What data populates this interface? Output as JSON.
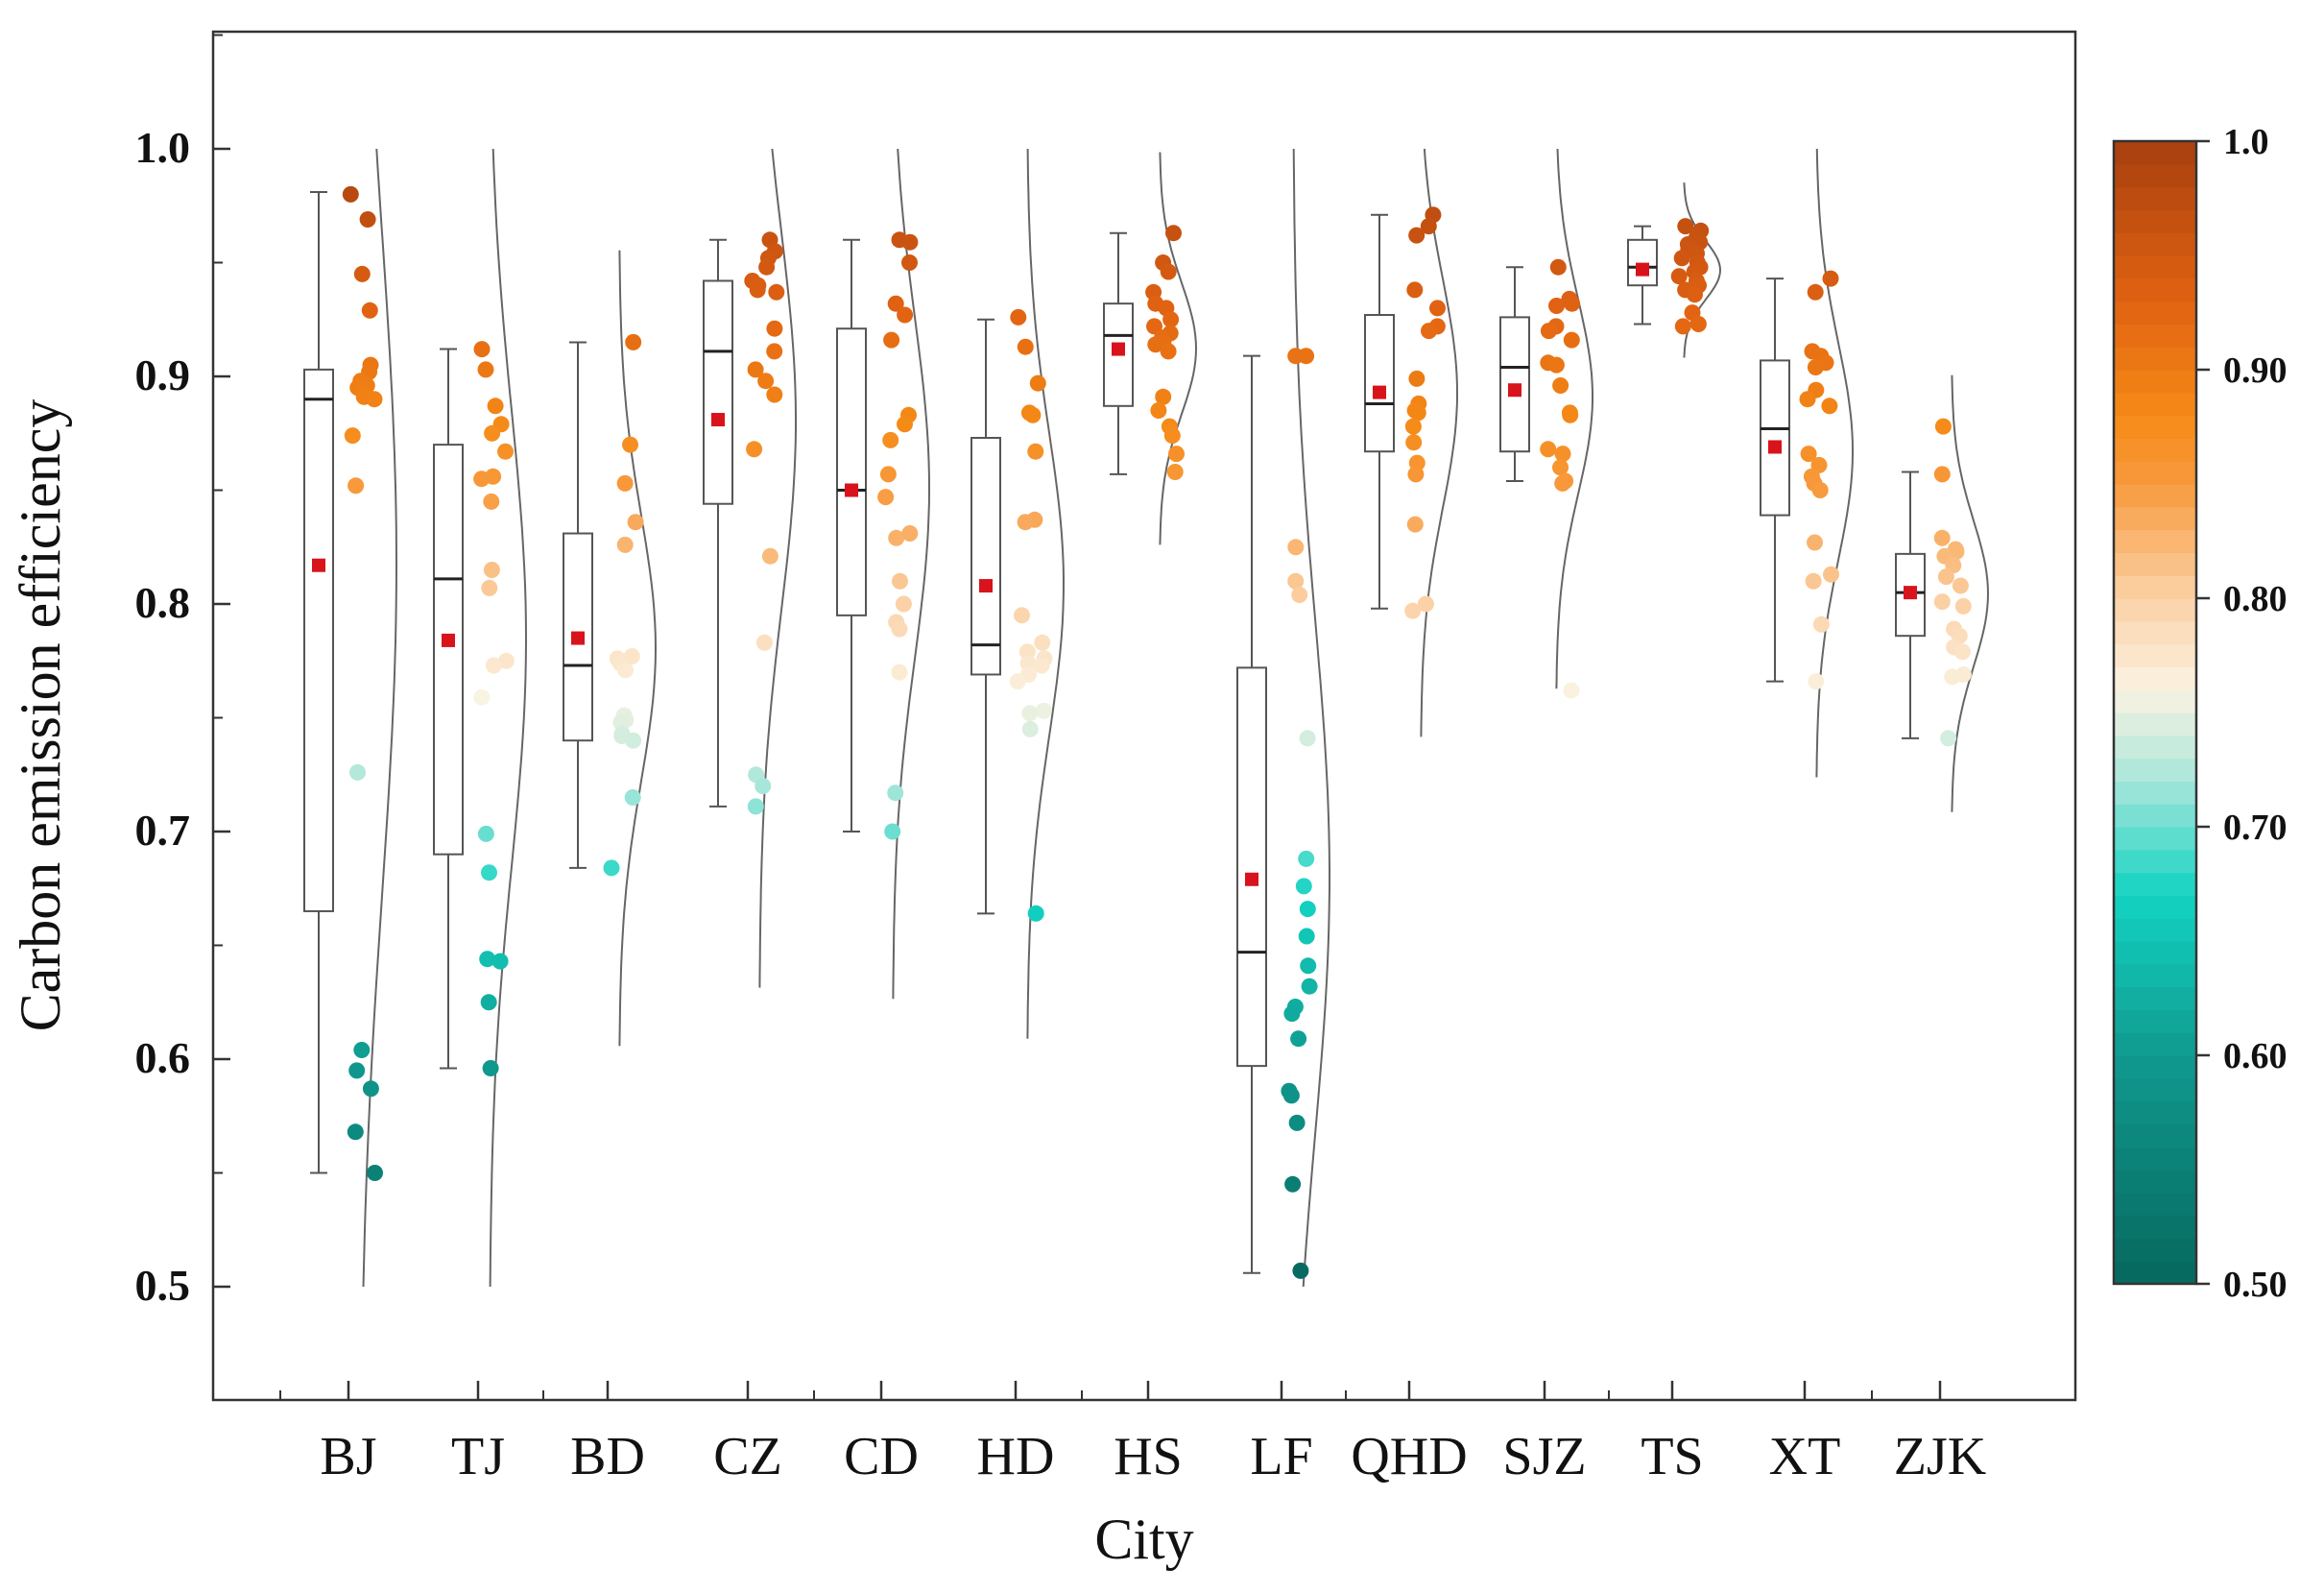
{
  "chart_data": {
    "type": "box-scatter-density",
    "xlabel": "City",
    "ylabel": "Carbon emission efficiency",
    "ylim": [
      0.45,
      1.05
    ],
    "yticks": [
      "0.5",
      "0.6",
      "0.7",
      "0.8",
      "0.9",
      "1.0"
    ],
    "categories": [
      "BJ",
      "TJ",
      "BD",
      "CZ",
      "CD",
      "HD",
      "HS",
      "LF",
      "QHD",
      "SJZ",
      "TS",
      "XT",
      "ZJK"
    ],
    "boxes": [
      {
        "city": "BJ",
        "whisker_low": 0.55,
        "q1": 0.665,
        "median": 0.89,
        "q3": 0.903,
        "whisker_high": 0.981,
        "mean": 0.817
      },
      {
        "city": "TJ",
        "whisker_low": 0.596,
        "q1": 0.69,
        "median": 0.811,
        "q3": 0.87,
        "whisker_high": 0.912,
        "mean": 0.784
      },
      {
        "city": "BD",
        "whisker_low": 0.684,
        "q1": 0.74,
        "median": 0.773,
        "q3": 0.831,
        "whisker_high": 0.915,
        "mean": 0.785
      },
      {
        "city": "CZ",
        "whisker_low": 0.711,
        "q1": 0.844,
        "median": 0.911,
        "q3": 0.942,
        "whisker_high": 0.96,
        "mean": 0.881
      },
      {
        "city": "CD",
        "whisker_low": 0.7,
        "q1": 0.795,
        "median": 0.85,
        "q3": 0.921,
        "whisker_high": 0.96,
        "mean": 0.85
      },
      {
        "city": "HD",
        "whisker_low": 0.664,
        "q1": 0.769,
        "median": 0.782,
        "q3": 0.873,
        "whisker_high": 0.925,
        "mean": 0.808
      },
      {
        "city": "HS",
        "whisker_low": 0.857,
        "q1": 0.887,
        "median": 0.918,
        "q3": 0.932,
        "whisker_high": 0.963,
        "mean": 0.912
      },
      {
        "city": "LF",
        "whisker_low": 0.506,
        "q1": 0.597,
        "median": 0.647,
        "q3": 0.772,
        "whisker_high": 0.909,
        "mean": 0.679
      },
      {
        "city": "QHD",
        "whisker_low": 0.798,
        "q1": 0.867,
        "median": 0.888,
        "q3": 0.927,
        "whisker_high": 0.971,
        "mean": 0.893
      },
      {
        "city": "SJZ",
        "whisker_low": 0.854,
        "q1": 0.867,
        "median": 0.904,
        "q3": 0.926,
        "whisker_high": 0.948,
        "mean": 0.894
      },
      {
        "city": "TS",
        "whisker_low": 0.923,
        "q1": 0.94,
        "median": 0.948,
        "q3": 0.96,
        "whisker_high": 0.966,
        "mean": 0.947
      },
      {
        "city": "XT",
        "whisker_low": 0.766,
        "q1": 0.839,
        "median": 0.877,
        "q3": 0.907,
        "whisker_high": 0.943,
        "mean": 0.869
      },
      {
        "city": "ZJK",
        "whisker_low": 0.741,
        "q1": 0.786,
        "median": 0.805,
        "q3": 0.822,
        "whisker_high": 0.858,
        "mean": 0.805
      }
    ],
    "points": {
      "BJ": [
        0.98,
        0.969,
        0.945,
        0.929,
        0.905,
        0.902,
        0.898,
        0.896,
        0.895,
        0.893,
        0.891,
        0.89,
        0.874,
        0.852,
        0.726,
        0.604,
        0.595,
        0.587,
        0.568,
        0.55
      ],
      "TJ": [
        0.912,
        0.903,
        0.887,
        0.879,
        0.875,
        0.867,
        0.856,
        0.855,
        0.845,
        0.815,
        0.807,
        0.775,
        0.773,
        0.759,
        0.699,
        0.682,
        0.644,
        0.643,
        0.625,
        0.596
      ],
      "BD": [
        0.915,
        0.87,
        0.853,
        0.836,
        0.826,
        0.777,
        0.776,
        0.774,
        0.771,
        0.751,
        0.749,
        0.748,
        0.743,
        0.742,
        0.74,
        0.715,
        0.684
      ],
      "CZ": [
        0.96,
        0.955,
        0.952,
        0.948,
        0.942,
        0.94,
        0.938,
        0.937,
        0.921,
        0.911,
        0.903,
        0.898,
        0.892,
        0.868,
        0.821,
        0.783,
        0.725,
        0.72,
        0.711
      ],
      "CD": [
        0.96,
        0.959,
        0.95,
        0.932,
        0.927,
        0.916,
        0.883,
        0.879,
        0.872,
        0.857,
        0.847,
        0.831,
        0.829,
        0.81,
        0.8,
        0.792,
        0.789,
        0.77,
        0.717,
        0.7
      ],
      "HD": [
        0.926,
        0.913,
        0.897,
        0.884,
        0.883,
        0.867,
        0.837,
        0.836,
        0.795,
        0.783,
        0.779,
        0.776,
        0.774,
        0.773,
        0.769,
        0.766,
        0.753,
        0.752,
        0.745,
        0.664
      ],
      "HS": [
        0.963,
        0.95,
        0.946,
        0.937,
        0.932,
        0.93,
        0.925,
        0.922,
        0.919,
        0.917,
        0.915,
        0.914,
        0.911,
        0.891,
        0.885,
        0.878,
        0.874,
        0.866,
        0.858
      ],
      "LF": [
        0.909,
        0.909,
        0.825,
        0.81,
        0.804,
        0.741,
        0.688,
        0.676,
        0.666,
        0.654,
        0.641,
        0.632,
        0.623,
        0.62,
        0.609,
        0.586,
        0.584,
        0.572,
        0.545,
        0.507
      ],
      "QHD": [
        0.971,
        0.966,
        0.962,
        0.938,
        0.93,
        0.922,
        0.92,
        0.899,
        0.888,
        0.885,
        0.884,
        0.878,
        0.871,
        0.862,
        0.857,
        0.835,
        0.8,
        0.797
      ],
      "SJZ": [
        0.948,
        0.934,
        0.932,
        0.931,
        0.922,
        0.92,
        0.916,
        0.906,
        0.905,
        0.896,
        0.884,
        0.883,
        0.868,
        0.866,
        0.86,
        0.854,
        0.853,
        0.762
      ],
      "TS": [
        0.966,
        0.964,
        0.961,
        0.959,
        0.958,
        0.956,
        0.954,
        0.952,
        0.95,
        0.948,
        0.946,
        0.944,
        0.942,
        0.94,
        0.938,
        0.936,
        0.928,
        0.923,
        0.922
      ],
      "XT": [
        0.943,
        0.937,
        0.911,
        0.909,
        0.906,
        0.904,
        0.894,
        0.89,
        0.887,
        0.866,
        0.861,
        0.856,
        0.853,
        0.85,
        0.827,
        0.813,
        0.81,
        0.791,
        0.766
      ],
      "ZJK": [
        0.878,
        0.857,
        0.829,
        0.824,
        0.823,
        0.821,
        0.817,
        0.812,
        0.808,
        0.801,
        0.799,
        0.789,
        0.786,
        0.781,
        0.779,
        0.769,
        0.768,
        0.741
      ]
    },
    "colorbar": {
      "range": [
        0.5,
        1.0
      ],
      "tick_values": [
        0.5,
        0.6,
        0.7,
        0.8,
        0.9,
        1.0
      ],
      "tick_labels": [
        "0.50",
        "0.60",
        "0.70",
        "0.80",
        "0.90",
        "1.0"
      ],
      "stops": [
        {
          "value": 0.5,
          "color": "#07675d"
        },
        {
          "value": 0.6,
          "color": "#109a8f"
        },
        {
          "value": 0.67,
          "color": "#12d3c2"
        },
        {
          "value": 0.72,
          "color": "#a7e6da"
        },
        {
          "value": 0.76,
          "color": "#fbf3e2"
        },
        {
          "value": 0.8,
          "color": "#fbd1a6"
        },
        {
          "value": 0.85,
          "color": "#f89a3e"
        },
        {
          "value": 0.88,
          "color": "#f58a16"
        },
        {
          "value": 0.93,
          "color": "#e16212"
        },
        {
          "value": 1.0,
          "color": "#a8400f"
        }
      ]
    },
    "mean_marker_color": "#d8131b",
    "box_style": {
      "fill": "#ffffff",
      "stroke": "#555555"
    }
  }
}
